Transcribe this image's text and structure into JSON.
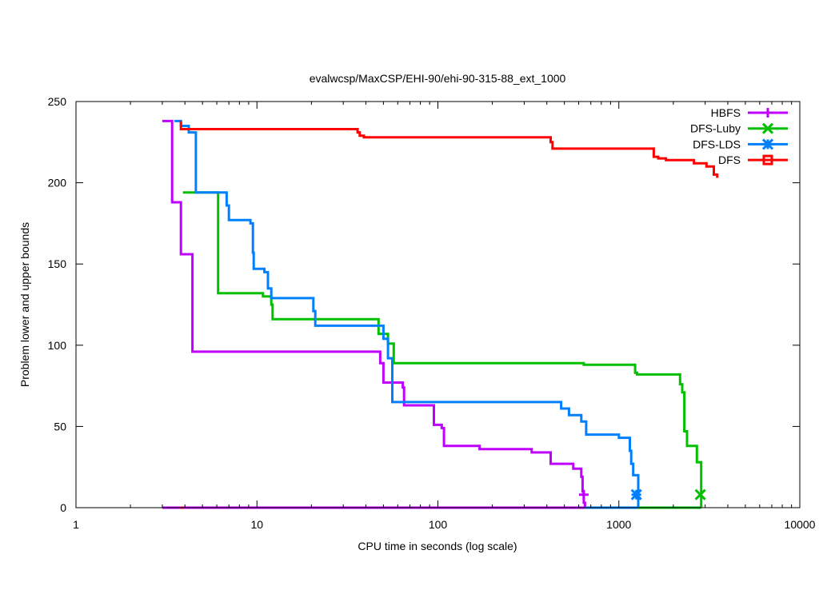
{
  "chart_data": {
    "type": "line",
    "step": true,
    "title": "evalwcsp/MaxCSP/EHI-90/ehi-90-315-88_ext_1000",
    "xlabel": "CPU time in seconds (log scale)",
    "ylabel": "Problem lower and upper bounds",
    "xscale": "log",
    "xlim": [
      1,
      10000
    ],
    "ylim": [
      0,
      250
    ],
    "xticks": [
      1,
      10,
      100,
      1000,
      10000
    ],
    "xtick_labels": [
      "1",
      "10",
      "100",
      "1000",
      "10000"
    ],
    "yticks": [
      0,
      50,
      100,
      150,
      200,
      250
    ],
    "ytick_labels": [
      "0",
      "50",
      "100",
      "150",
      "200",
      "250"
    ],
    "grid": false,
    "legend_position": "top-right",
    "series": [
      {
        "name": "HBFS",
        "color": "#bf00ff",
        "marker": "plus",
        "upper": [
          [
            3.0,
            238
          ],
          [
            3.4,
            238
          ],
          [
            3.4,
            188
          ],
          [
            3.8,
            188
          ],
          [
            3.8,
            156
          ],
          [
            4.4,
            156
          ],
          [
            4.4,
            96
          ],
          [
            48,
            96
          ],
          [
            48,
            89
          ],
          [
            50,
            89
          ],
          [
            50,
            77
          ],
          [
            64,
            77
          ],
          [
            64,
            74
          ],
          [
            65,
            74
          ],
          [
            65,
            63
          ],
          [
            95,
            63
          ],
          [
            95,
            51
          ],
          [
            105,
            51
          ],
          [
            105,
            49
          ],
          [
            108,
            49
          ],
          [
            108,
            38
          ],
          [
            170,
            38
          ],
          [
            170,
            36
          ],
          [
            330,
            36
          ],
          [
            330,
            34
          ],
          [
            420,
            34
          ],
          [
            420,
            27
          ],
          [
            560,
            27
          ],
          [
            560,
            24
          ],
          [
            620,
            24
          ],
          [
            620,
            19
          ],
          [
            630,
            19
          ],
          [
            630,
            10
          ],
          [
            640,
            10
          ],
          [
            640,
            3
          ],
          [
            650,
            3
          ],
          [
            650,
            0
          ]
        ],
        "lower": [
          [
            3.0,
            0
          ],
          [
            650,
            0
          ]
        ],
        "end_point": [
          640,
          8
        ]
      },
      {
        "name": "DFS-Luby",
        "color": "#00c000",
        "marker": "cross",
        "upper": [
          [
            3.9,
            194
          ],
          [
            6.1,
            194
          ],
          [
            6.1,
            132
          ],
          [
            10.8,
            132
          ],
          [
            10.8,
            130
          ],
          [
            12.0,
            130
          ],
          [
            12.0,
            125
          ],
          [
            12.2,
            125
          ],
          [
            12.2,
            116
          ],
          [
            47,
            116
          ],
          [
            47,
            107
          ],
          [
            53,
            107
          ],
          [
            53,
            101
          ],
          [
            57,
            101
          ],
          [
            57,
            89
          ],
          [
            640,
            89
          ],
          [
            640,
            88
          ],
          [
            1230,
            88
          ],
          [
            1230,
            83
          ],
          [
            1260,
            83
          ],
          [
            1260,
            82
          ],
          [
            2180,
            82
          ],
          [
            2180,
            76
          ],
          [
            2240,
            76
          ],
          [
            2240,
            71
          ],
          [
            2300,
            71
          ],
          [
            2300,
            47
          ],
          [
            2380,
            47
          ],
          [
            2380,
            38
          ],
          [
            2700,
            38
          ],
          [
            2700,
            28
          ],
          [
            2850,
            28
          ],
          [
            2850,
            0
          ]
        ],
        "lower": [
          [
            1260,
            0
          ],
          [
            2850,
            0
          ]
        ],
        "end_point": [
          2820,
          8
        ]
      },
      {
        "name": "DFS-LDS",
        "color": "#0080ff",
        "marker": "star",
        "upper": [
          [
            3.5,
            238
          ],
          [
            3.8,
            238
          ],
          [
            3.8,
            235
          ],
          [
            4.2,
            235
          ],
          [
            4.2,
            231
          ],
          [
            4.6,
            231
          ],
          [
            4.6,
            194
          ],
          [
            6.8,
            194
          ],
          [
            6.8,
            186
          ],
          [
            7.0,
            186
          ],
          [
            7.0,
            177
          ],
          [
            9.2,
            177
          ],
          [
            9.2,
            175
          ],
          [
            9.5,
            175
          ],
          [
            9.5,
            157
          ],
          [
            9.6,
            157
          ],
          [
            9.6,
            147
          ],
          [
            11.0,
            147
          ],
          [
            11.0,
            145
          ],
          [
            11.5,
            145
          ],
          [
            11.5,
            135
          ],
          [
            12.0,
            135
          ],
          [
            12.0,
            129
          ],
          [
            20.5,
            129
          ],
          [
            20.5,
            121
          ],
          [
            21.0,
            121
          ],
          [
            21.0,
            112
          ],
          [
            50,
            112
          ],
          [
            50,
            104
          ],
          [
            53,
            104
          ],
          [
            53,
            92
          ],
          [
            56,
            92
          ],
          [
            56,
            65
          ],
          [
            480,
            65
          ],
          [
            480,
            61
          ],
          [
            530,
            61
          ],
          [
            530,
            57
          ],
          [
            620,
            57
          ],
          [
            620,
            53
          ],
          [
            660,
            53
          ],
          [
            660,
            45
          ],
          [
            1000,
            45
          ],
          [
            1000,
            43
          ],
          [
            1150,
            43
          ],
          [
            1150,
            35
          ],
          [
            1170,
            35
          ],
          [
            1170,
            27
          ],
          [
            1200,
            27
          ],
          [
            1200,
            20
          ],
          [
            1280,
            20
          ],
          [
            1280,
            0
          ]
        ],
        "lower": [
          [
            650,
            0
          ],
          [
            1280,
            0
          ]
        ],
        "end_point": [
          1250,
          8
        ]
      },
      {
        "name": "DFS",
        "color": "#ff0000",
        "marker": "square",
        "upper": [
          [
            3.8,
            238
          ],
          [
            3.8,
            233
          ],
          [
            36,
            233
          ],
          [
            36,
            231
          ],
          [
            37,
            231
          ],
          [
            37,
            229
          ],
          [
            39,
            229
          ],
          [
            39,
            228
          ],
          [
            420,
            228
          ],
          [
            420,
            225
          ],
          [
            430,
            225
          ],
          [
            430,
            221
          ],
          [
            1560,
            221
          ],
          [
            1560,
            216
          ],
          [
            1650,
            216
          ],
          [
            1650,
            215
          ],
          [
            1820,
            215
          ],
          [
            1820,
            214
          ],
          [
            2600,
            214
          ],
          [
            2600,
            212
          ],
          [
            3050,
            212
          ],
          [
            3050,
            210
          ],
          [
            3350,
            210
          ],
          [
            3350,
            205
          ],
          [
            3500,
            205
          ],
          [
            3500,
            203
          ]
        ],
        "lower": [
          [
            3.8,
            0
          ],
          [
            3.9,
            0
          ]
        ]
      }
    ]
  }
}
